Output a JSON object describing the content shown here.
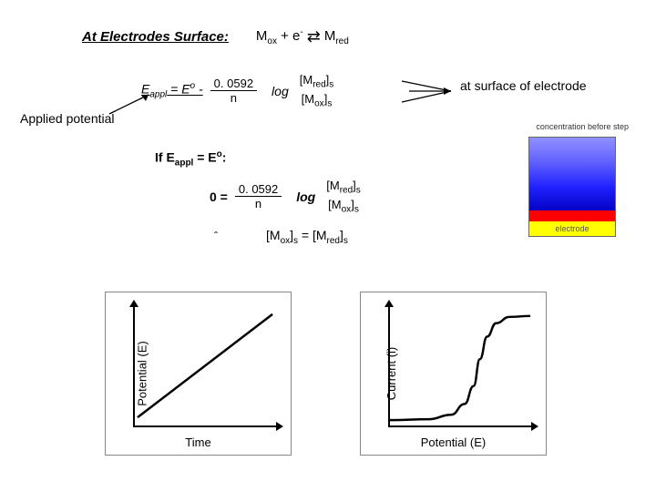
{
  "header": {
    "title": "At Electrodes Surface:",
    "reaction_lhs": "M",
    "reaction_lhs_sub": "ox",
    "reaction_plus": " + e",
    "reaction_sup": "-",
    "reaction_arrow": "⇄",
    "reaction_rhs": "M",
    "reaction_rhs_sub": "red"
  },
  "eq1": {
    "lhs": "E",
    "lhs_sub1": "appl",
    "eq_sign": " = E",
    "lhs_sup": "o",
    "minus": " - ",
    "coef": "0. 0592",
    "denom": "n",
    "log": "log",
    "ratio_top": "[M",
    "ratio_top_sub1": "red",
    "ratio_top_close": "]",
    "ratio_top_sub2": "s",
    "ratio_bot": "[M",
    "ratio_bot_sub1": "ox",
    "ratio_bot_close": "]",
    "ratio_bot_sub2": "s"
  },
  "applied_label": "Applied potential",
  "surface_label": "at surface of electrode",
  "if_line": {
    "prefix": "If E",
    "sub1": "appl",
    "mid": " = E",
    "sup": "o",
    "suffix": ":"
  },
  "eq2": {
    "lhs": "0 = ",
    "coef": "0. 0592",
    "denom": "n",
    "log": "log",
    "ratio_top": "[M",
    "ratio_top_sub1": "red",
    "ratio_top_close": "]",
    "ratio_top_sub2": "s",
    "ratio_bot": "[M",
    "ratio_bot_sub1": "ox",
    "ratio_bot_close": "]",
    "ratio_bot_sub2": "s"
  },
  "therefore": "ˆ",
  "equality": {
    "l": "[M",
    "l_sub1": "ox",
    "l_close": "]",
    "l_sub2": "s",
    "eq": " = [M",
    "r_sub1": "red",
    "r_close": "]",
    "r_sub2": "s"
  },
  "gradient": {
    "label": "concentration before step",
    "electrode": "electrode",
    "bulk_colors": [
      "#9090ff",
      "#6060ff",
      "#2020ff",
      "#0000c0"
    ],
    "surf_color": "#ff0000",
    "electrode_color": "#ffff00"
  },
  "chart_left": {
    "ylabel": "Potential (E)",
    "xlabel": "Time",
    "type": "line",
    "stroke": "#000000",
    "stroke_width": 2.5,
    "points": [
      [
        5,
        125
      ],
      [
        155,
        10
      ]
    ]
  },
  "chart_right": {
    "ylabel": "Current (i)",
    "xlabel": "Potential (E)",
    "type": "sigmoid",
    "stroke": "#000000",
    "stroke_width": 2.5,
    "points": [
      [
        2,
        128
      ],
      [
        45,
        127
      ],
      [
        70,
        122
      ],
      [
        85,
        110
      ],
      [
        95,
        90
      ],
      [
        102,
        60
      ],
      [
        110,
        35
      ],
      [
        120,
        20
      ],
      [
        135,
        13
      ],
      [
        158,
        12
      ]
    ]
  }
}
